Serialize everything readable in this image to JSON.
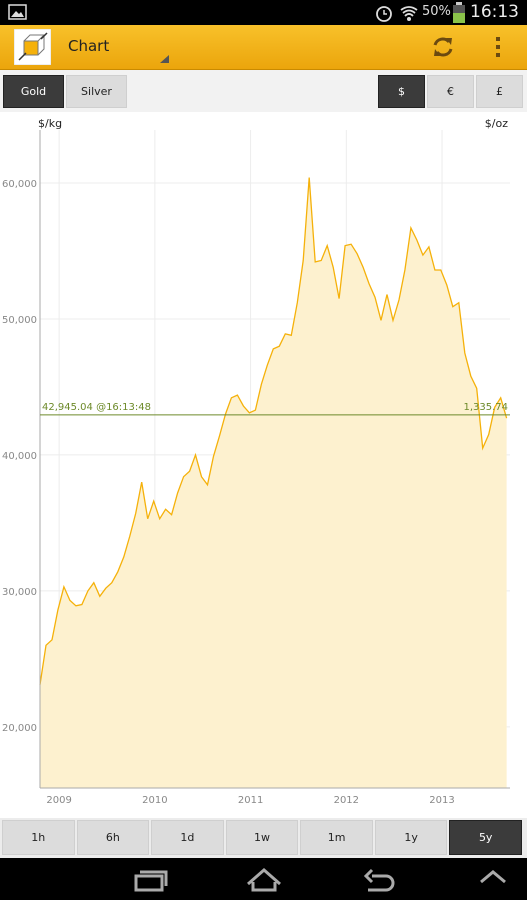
{
  "status_bar": {
    "battery": "50%",
    "time": "16:13"
  },
  "app_bar": {
    "title": "Chart"
  },
  "metal_tabs": [
    "Gold",
    "Silver"
  ],
  "currency_tabs": [
    "$",
    "€",
    "£"
  ],
  "ranges": [
    "1h",
    "6h",
    "1d",
    "1w",
    "1m",
    "1y",
    "5y"
  ],
  "chart_data": {
    "type": "area",
    "y_label": "$/kg",
    "y2_label": "$/oz",
    "x": [
      2008.8,
      2008.8625,
      2008.925,
      2008.9875,
      2009.05,
      2009.1125,
      2009.175,
      2009.2375,
      2009.3,
      2009.3625,
      2009.425,
      2009.4875,
      2009.55,
      2009.6125,
      2009.675,
      2009.7375,
      2009.8,
      2009.8625,
      2009.925,
      2009.9875,
      2010.05,
      2010.1125,
      2010.175,
      2010.2375,
      2010.3,
      2010.3625,
      2010.425,
      2010.4875,
      2010.55,
      2010.6125,
      2010.675,
      2010.7375,
      2010.8,
      2010.8625,
      2010.925,
      2010.9875,
      2011.05,
      2011.1125,
      2011.175,
      2011.2375,
      2011.3,
      2011.3625,
      2011.425,
      2011.4875,
      2011.55,
      2011.6125,
      2011.675,
      2011.7375,
      2011.8,
      2011.8625,
      2011.925,
      2011.9875,
      2012.05,
      2012.1125,
      2012.175,
      2012.2375,
      2012.3,
      2012.3625,
      2012.425,
      2012.4875,
      2012.55,
      2012.6125,
      2012.675,
      2012.7375,
      2012.8,
      2012.8625,
      2012.925,
      2012.9875,
      2013.05,
      2013.1125,
      2013.175,
      2013.2375,
      2013.3,
      2013.3625,
      2013.425,
      2013.4875,
      2013.55,
      2013.6125,
      2013.675
    ],
    "values": [
      23100,
      26000,
      26400,
      28600,
      30300,
      29300,
      28900,
      29000,
      30000,
      30600,
      29600,
      30200,
      30600,
      31400,
      32500,
      34000,
      35700,
      38000,
      35300,
      36600,
      35300,
      36000,
      35600,
      37200,
      38400,
      38800,
      40000,
      38400,
      37800,
      39900,
      41400,
      43000,
      44200,
      44400,
      43600,
      43100,
      43300,
      45200,
      46600,
      47800,
      48000,
      48900,
      48800,
      51200,
      54300,
      60400,
      54200,
      54300,
      55400,
      53800,
      51500,
      55400,
      55500,
      54800,
      53800,
      52600,
      51600,
      49900,
      51800,
      49900,
      51400,
      53600,
      56700,
      55800,
      54700,
      55300,
      53600,
      53600,
      52500,
      50900,
      51200,
      47500,
      45800,
      44900,
      40500,
      41500,
      43500,
      44200,
      42700
    ],
    "color": "#f5b10a",
    "fill_color": "#fdf1cf",
    "xlim": [
      2008.8,
      2013.71
    ],
    "xticks": [
      2009,
      2010,
      2011,
      2012,
      2013
    ],
    "ylim": [
      15500,
      63900
    ],
    "yticks": [
      {
        "value": 20000,
        "label": "20,000"
      },
      {
        "value": 30000,
        "label": "30,000"
      },
      {
        "value": 40000,
        "label": "40,000"
      },
      {
        "value": 50000,
        "label": "50,000"
      },
      {
        "value": 60000,
        "label": "60,000"
      }
    ],
    "grid": true,
    "current_price": {
      "value": 42945.04,
      "label": "42,945.04 @16:13:48",
      "color": "#6d8a2a"
    },
    "current_price_oz": {
      "value": 1335.74,
      "label": "1,335.74"
    }
  }
}
